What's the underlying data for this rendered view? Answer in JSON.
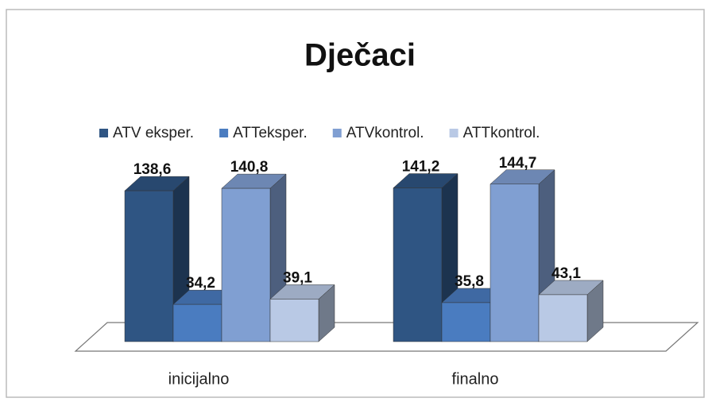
{
  "chart_data": {
    "type": "bar3d",
    "title": "Dječaci",
    "categories": [
      "inicijalno",
      "finalno"
    ],
    "series": [
      {
        "name": "ATV eksper.",
        "color": "#2f5583",
        "values": [
          138.6,
          141.2
        ],
        "value_labels": [
          "138,6",
          "141,2"
        ]
      },
      {
        "name": "ATTeksper.",
        "color": "#4a7cc0",
        "values": [
          34.2,
          35.8
        ],
        "value_labels": [
          "34,2",
          "35,8"
        ]
      },
      {
        "name": "ATVkontrol.",
        "color": "#809fd2",
        "values": [
          140.8,
          144.7
        ],
        "value_labels": [
          "140,8",
          "144,7"
        ]
      },
      {
        "name": "ATTkontrol.",
        "color": "#b9c9e5",
        "values": [
          39.1,
          43.1
        ],
        "value_labels": [
          "39,1",
          "43,1"
        ]
      }
    ],
    "legend": "top"
  }
}
